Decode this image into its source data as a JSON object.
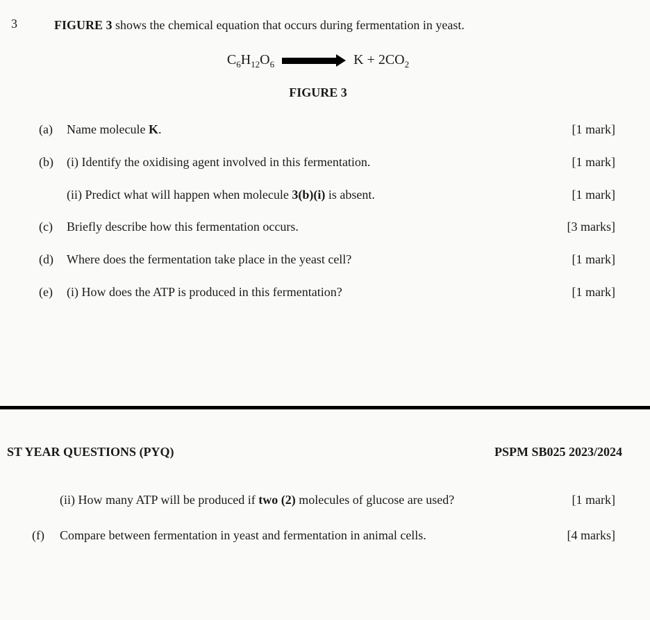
{
  "question_number": "3",
  "intro": {
    "prefix": "FIGURE 3",
    "rest": " shows the chemical equation that occurs during fermentation in yeast."
  },
  "equation": {
    "left_base": "C",
    "left_sub1": "6",
    "left_base2": "H",
    "left_sub2": "12",
    "left_base3": "O",
    "left_sub3": "6",
    "right_k": "K + 2CO",
    "right_sub": "2"
  },
  "figure_caption": "FIGURE 3",
  "items": {
    "a": {
      "label": "(a)",
      "text_pre": "Name molecule ",
      "text_bold": "K",
      "text_post": ".",
      "mark": "[1 mark]"
    },
    "b_i": {
      "label": "(b)",
      "text": "(i) Identify the oxidising agent involved in this fermentation.",
      "mark": "[1 mark]"
    },
    "b_ii": {
      "text_pre": "(ii) Predict what will happen when molecule ",
      "text_bold": "3(b)(i)",
      "text_post": " is absent.",
      "mark": "[1 mark]"
    },
    "c": {
      "label": "(c)",
      "text": "Briefly describe how this fermentation occurs.",
      "mark": "[3 marks]"
    },
    "d": {
      "label": "(d)",
      "text": "Where does the fermentation take place in the yeast cell?",
      "mark": "[1 mark]"
    },
    "e_i": {
      "label": "(e)",
      "text": "(i) How does the ATP is produced in this fermentation?",
      "mark": "[1 mark]"
    }
  },
  "page2": {
    "pyq_left": "ST YEAR QUESTIONS (PYQ)",
    "pyq_right": "PSPM SB025 2023/2024",
    "e_ii": {
      "text_pre": "(ii) How many ATP will be produced if ",
      "text_bold": "two (2)",
      "text_post": " molecules of glucose are used?",
      "mark": "[1 mark]"
    },
    "f": {
      "label": "(f)",
      "text": "Compare between fermentation in yeast and fermentation in animal cells.",
      "mark": "[4 marks]"
    }
  }
}
